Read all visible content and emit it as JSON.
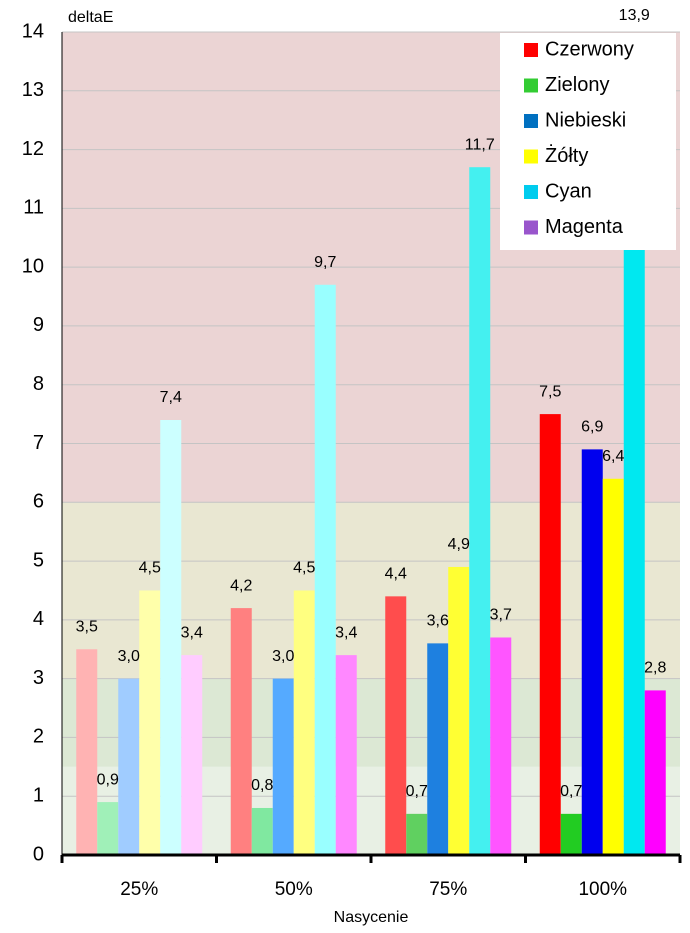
{
  "chart_data": {
    "type": "bar",
    "ylabel": "deltaE",
    "xlabel": "Nasycenie",
    "categories": [
      "25%",
      "50%",
      "75%",
      "100%"
    ],
    "series": [
      {
        "name": "Czerwony",
        "color": "#ff0000",
        "point_colors": [
          "#ffb3b3",
          "#ff8080",
          "#ff4d4d",
          "#ff0000"
        ],
        "values": [
          3.5,
          4.2,
          4.4,
          7.5
        ],
        "value_labels": [
          "3,5",
          "4,2",
          "4,4",
          "7,5"
        ]
      },
      {
        "name": "Zielony",
        "color": "#33cc33",
        "point_colors": [
          "#a0f0b8",
          "#80e8a0",
          "#60d060",
          "#22cc22"
        ],
        "values": [
          0.9,
          0.8,
          0.7,
          0.7
        ],
        "value_labels": [
          "0,9",
          "0,8",
          "0,7",
          "0,7"
        ]
      },
      {
        "name": "Niebieski",
        "color": "#0070c0",
        "point_colors": [
          "#a0ccff",
          "#55aaff",
          "#1e80e0",
          "#0000ee"
        ],
        "values": [
          3.0,
          3.0,
          3.6,
          6.9
        ],
        "value_labels": [
          "3,0",
          "3,0",
          "3,6",
          "6,9"
        ]
      },
      {
        "name": "Żółty",
        "color": "#ffff00",
        "point_colors": [
          "#ffffaa",
          "#ffff80",
          "#ffff33",
          "#ffff00"
        ],
        "values": [
          4.5,
          4.5,
          4.9,
          6.4
        ],
        "value_labels": [
          "4,5",
          "4,5",
          "4,9",
          "6,4"
        ]
      },
      {
        "name": "Cyan",
        "color": "#00ccee",
        "point_colors": [
          "#ccffff",
          "#99ffff",
          "#44f0f0",
          "#00e8f0"
        ],
        "values": [
          7.4,
          9.7,
          11.7,
          13.9
        ],
        "value_labels": [
          "7,4",
          "9,7",
          "11,7",
          "13,9"
        ]
      },
      {
        "name": "Magenta",
        "color": "#9955cc",
        "point_colors": [
          "#ffccff",
          "#ff88ff",
          "#ff55ff",
          "#ff00ff"
        ],
        "values": [
          3.4,
          3.4,
          3.7,
          2.8
        ],
        "value_labels": [
          "3,4",
          "3,4",
          "3,7",
          "2,8"
        ]
      }
    ],
    "ylim": [
      0,
      14
    ],
    "yticks": [
      0,
      1,
      2,
      3,
      4,
      5,
      6,
      7,
      8,
      9,
      10,
      11,
      12,
      13,
      14
    ],
    "grid": true,
    "legend": "top-right",
    "bands": [
      {
        "from": 0,
        "to": 1.5,
        "color": "#e8f0e4"
      },
      {
        "from": 1.5,
        "to": 3,
        "color": "#dce8d4"
      },
      {
        "from": 3,
        "to": 6,
        "color": "#e9e7d2"
      },
      {
        "from": 6,
        "to": 14,
        "color": "#ebd4d4"
      }
    ]
  }
}
